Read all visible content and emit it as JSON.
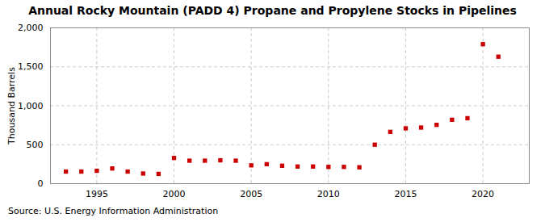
{
  "chart_data": {
    "type": "scatter",
    "title": "Annual Rocky Mountain (PADD 4) Propane and Propylene Stocks in Pipelines",
    "ylabel": "Thousand Barrels",
    "source": "Source: U.S. Energy Information Administration",
    "x": [
      1993,
      1994,
      1995,
      1996,
      1997,
      1998,
      1999,
      2000,
      2001,
      2002,
      2003,
      2004,
      2005,
      2006,
      2007,
      2008,
      2009,
      2010,
      2011,
      2012,
      2013,
      2014,
      2015,
      2016,
      2017,
      2018,
      2019,
      2020,
      2021
    ],
    "values": [
      155,
      155,
      165,
      195,
      155,
      130,
      125,
      330,
      295,
      295,
      300,
      295,
      235,
      250,
      230,
      220,
      220,
      215,
      215,
      210,
      500,
      665,
      710,
      720,
      755,
      820,
      840,
      1790,
      1630
    ],
    "color": "#cc0000",
    "marker": "square",
    "xlim": [
      1992,
      2023
    ],
    "xticks": [
      1995,
      2000,
      2005,
      2010,
      2015,
      2020
    ],
    "ylim": [
      0,
      2000
    ],
    "yticks": [
      0,
      500,
      {
        "value": 1000,
        "label": "1,000"
      },
      {
        "value": 1500,
        "label": "1,500"
      },
      {
        "value": 2000,
        "label": "2,000"
      }
    ],
    "grid": true
  }
}
